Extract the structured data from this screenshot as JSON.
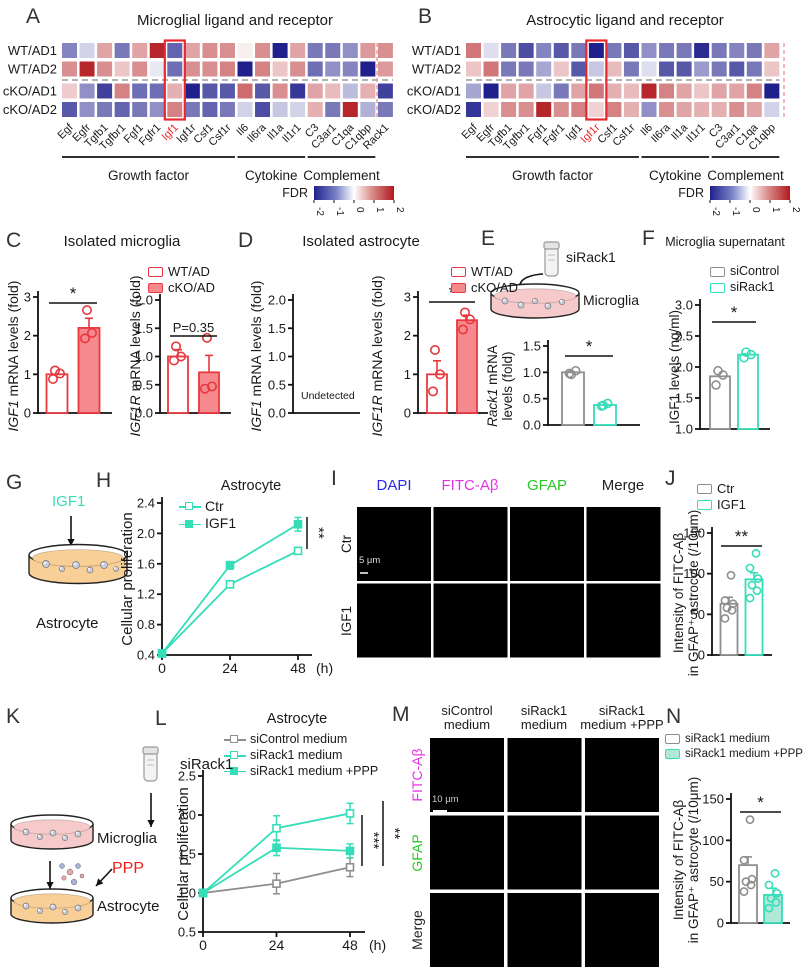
{
  "panels": {
    "a": "A",
    "b": "B",
    "c": "C",
    "d": "D",
    "e": "E",
    "f": "F",
    "g": "G",
    "h": "H",
    "i": "I",
    "j": "J",
    "k": "K",
    "l": "L",
    "m": "M",
    "n": "N"
  },
  "colors": {
    "red": "#e7383e",
    "pink": "#f5898d",
    "teal": "#35ddb8",
    "gray": "#8e8e8e",
    "teal_light": "#b2e8d8",
    "magenta": "#e832e8",
    "green": "#28c828",
    "blue": "#2a2ae8"
  },
  "heatmap_a": {
    "title": "Microglial ligand and receptor",
    "rows": [
      "WT/AD1",
      "WT/AD2",
      "cKO/AD1",
      "cKO/AD2"
    ],
    "genes": [
      "Egf",
      "Egfr",
      "Tgfb1",
      "Tgfbr1",
      "Fgf1",
      "Fgfr1",
      "Igf1",
      "Igf1r",
      "Csf1",
      "Csf1r",
      "Il6",
      "Il6ra",
      "Il1a",
      "Il1r1",
      "C3",
      "C3ar1",
      "C1qa",
      "C1qbp",
      "Rack1"
    ],
    "highlight_gene": "Igf1",
    "values": [
      [
        -1.1,
        -0.4,
        0.8,
        -1.2,
        0.8,
        1.9,
        -1.4,
        0.8,
        1.0,
        1.0,
        0.15,
        1.0,
        -2,
        0.8,
        -1.2,
        -1.2,
        -1.0,
        0.9,
        1.0
      ],
      [
        1.0,
        1.9,
        1.0,
        0.5,
        1.0,
        -0.2,
        -1.3,
        1.0,
        1.0,
        1.1,
        -2,
        1.1,
        0.5,
        1.0,
        -1.3,
        -1.0,
        -1.1,
        -2,
        0.9
      ],
      [
        0.45,
        -1.0,
        -1.7,
        1.1,
        -1.3,
        -1.3,
        0.7,
        -2,
        -1.5,
        -1.5,
        1.3,
        -1.5,
        1.0,
        -1.8,
        0.8,
        0.6,
        -0.6,
        0.7,
        -1.7
      ],
      [
        -1.5,
        -1.0,
        -1.2,
        -1.4,
        -1.2,
        -1.0,
        1.1,
        -1.2,
        -1.4,
        -1.2,
        -0.4,
        -1.6,
        -0.5,
        -0.4,
        0.7,
        -1.2,
        1.9,
        -0.7,
        -1.2
      ]
    ],
    "groups": [
      {
        "label": "Growth factor",
        "from": 0,
        "to": 9
      },
      {
        "label": "Cytokine",
        "from": 10,
        "to": 13
      },
      {
        "label": "Complement",
        "from": 14,
        "to": 17
      }
    ],
    "legend_label": "FDR",
    "legend_ticks": [
      "-2",
      "-1",
      "0",
      "1",
      "2"
    ]
  },
  "heatmap_b": {
    "title": "Astrocytic ligand and receptor",
    "rows": [
      "WT/AD1",
      "WT/AD2",
      "cKO/AD1",
      "cKO/AD2"
    ],
    "genes": [
      "Egf",
      "Egfr",
      "Tgfb1",
      "Tgfbr1",
      "Fgf1",
      "Fgfr1",
      "Igf1",
      "Igf1r",
      "Csf1",
      "Csf1r",
      "Il6",
      "Il6ra",
      "Il1a",
      "Il1r1",
      "C3",
      "C3ar1",
      "C1qa",
      "C1qbp"
    ],
    "highlight_gene": "Igf1r",
    "values": [
      [
        1.2,
        -0.3,
        -1.2,
        -1.6,
        -1.1,
        -1.5,
        -1.2,
        -2,
        -1.2,
        -1.5,
        -1.0,
        -1.2,
        -1.2,
        -1.9,
        -1.2,
        -1.1,
        -1.2,
        0.8
      ],
      [
        0.5,
        1.2,
        -1.2,
        -1.2,
        -0.8,
        0.5,
        -1.5,
        -0.5,
        0.6,
        -1.2,
        -0.3,
        -1.5,
        -1.5,
        -0.9,
        -1.2,
        -1.5,
        -1.2,
        0.5
      ],
      [
        -0.8,
        -2,
        0.8,
        0.8,
        -0.5,
        -1.2,
        0.8,
        1.2,
        0.7,
        0.6,
        1.9,
        1.1,
        0.8,
        0.5,
        0.8,
        0.8,
        1.1,
        -2
      ],
      [
        -1.8,
        0.4,
        1.0,
        1.0,
        1.9,
        1.0,
        1.1,
        0.4,
        1.1,
        0.7,
        -1.0,
        1.0,
        0.8,
        0.7,
        0.7,
        1.0,
        0.8,
        -0.4
      ]
    ],
    "groups": [
      {
        "label": "Growth factor",
        "from": 0,
        "to": 9
      },
      {
        "label": "Cytokine",
        "from": 10,
        "to": 13
      },
      {
        "label": "Complement",
        "from": 14,
        "to": 17
      }
    ],
    "legend_label": "FDR",
    "legend_ticks": [
      "-2",
      "-1",
      "0",
      "1",
      "2"
    ]
  },
  "panel_c": {
    "title": "Isolated microglia",
    "legend": [
      {
        "label": "WT/AD",
        "fill": "#ffffff",
        "stroke": "#e7383e"
      },
      {
        "label": "cKO/AD",
        "fill": "#f5898d",
        "stroke": "#e7383e"
      }
    ]
  },
  "panel_d": {
    "title": "Isolated astrocyte",
    "legend": [
      {
        "label": "WT/AD",
        "fill": "#ffffff",
        "stroke": "#e7383e"
      },
      {
        "label": "cKO/AD",
        "fill": "#f5898d",
        "stroke": "#e7383e"
      }
    ]
  },
  "panel_f": {
    "title": "Microglia supernatant",
    "legend": [
      {
        "label": "siControl",
        "fill": "#ffffff",
        "stroke": "#8e8e8e"
      },
      {
        "label": "siRack1",
        "fill": "#ffffff",
        "stroke": "#35ddb8"
      }
    ]
  },
  "panel_h": {
    "title": "Astrocyte",
    "legend": [
      {
        "label": "Ctr",
        "type": "line",
        "color": "#35ddb8",
        "filled": false
      },
      {
        "label": "IGF1",
        "type": "line",
        "color": "#35ddb8",
        "filled": true
      }
    ]
  },
  "panel_j": {
    "legend": [
      {
        "label": "Ctr",
        "fill": "#ffffff",
        "stroke": "#8e8e8e"
      },
      {
        "label": "IGF1",
        "fill": "#ffffff",
        "stroke": "#35ddb8"
      }
    ]
  },
  "panel_l": {
    "title": "Astrocyte",
    "legend": [
      {
        "label": "siControl medium",
        "type": "line",
        "color": "#8e8e8e",
        "filled": false
      },
      {
        "label": "siRack1 medium",
        "type": "line",
        "color": "#35ddb8",
        "filled": false
      },
      {
        "label": "siRack1 medium +PPP",
        "type": "line",
        "color": "#35ddb8",
        "filled": true
      }
    ]
  },
  "panel_n": {
    "legend": [
      {
        "label": "siRack1 medium",
        "fill": "#ffffff",
        "stroke": "#8e8e8e"
      },
      {
        "label": "siRack1 medium +PPP",
        "fill": "#b2e8d8",
        "stroke": "#35ddb8"
      }
    ]
  },
  "diagram_e": {
    "tube": "siRack1",
    "dish": "Microglia"
  },
  "diagram_g": {
    "factor": "IGF1",
    "dish": "Astrocyte"
  },
  "diagram_k": {
    "tube": "siRack1",
    "dish1": "Microglia",
    "ppp": "PPP",
    "dish2": "Astrocyte"
  },
  "microscopy_i": {
    "col_headers": [
      {
        "label": "DAPI",
        "color": "#2a2ae8"
      },
      {
        "label": "FITC-Aβ",
        "color": "#e832e8"
      },
      {
        "label": "GFAP",
        "color": "#28c828"
      },
      {
        "label": "Merge",
        "color": "#222222"
      }
    ],
    "row_labels": [
      "Ctr",
      "IGF1"
    ],
    "scale_label": "5 μm"
  },
  "microscopy_m": {
    "col_headers": [
      [
        "siControl",
        "medium"
      ],
      [
        "siRack1",
        "medium"
      ],
      [
        "siRack1",
        "medium +PPP"
      ]
    ],
    "row_labels": [
      {
        "label": "FITC-Aβ",
        "color": "#e832e8"
      },
      {
        "label": "GFAP",
        "color": "#28c828"
      },
      {
        "label": "Merge",
        "color": "#222222"
      }
    ],
    "scale_label": "10 μm"
  },
  "chart_data": {
    "c1": {
      "type": "bar",
      "ylim": [
        0,
        3
      ],
      "yticks": [
        {
          "v": 0,
          "t": "0"
        },
        {
          "v": 1,
          "t": "1"
        },
        {
          "v": 2,
          "t": "2"
        },
        {
          "v": 3,
          "t": "3"
        }
      ],
      "ylabel": [
        {
          "t": "IGF1",
          "i": 1
        },
        {
          "t": " mRNA levels (fold)"
        }
      ],
      "bars": [
        {
          "label": "WT/AD",
          "value": 1.0,
          "points": [
            0.88,
            1.02,
            1.1
          ],
          "fill": "#ffffff",
          "stroke": "#e7383e"
        },
        {
          "label": "cKO/AD",
          "value": 2.2,
          "err": 0.25,
          "points": [
            1.93,
            2.07,
            2.66
          ],
          "fill": "#f5898d",
          "stroke": "#e7383e"
        }
      ],
      "sig": {
        "label": "*"
      }
    },
    "c2": {
      "type": "bar",
      "ylim": [
        0,
        2
      ],
      "yticks": [
        {
          "v": 0,
          "t": "0.0"
        },
        {
          "v": 0.5,
          "t": "0.5"
        },
        {
          "v": 1,
          "t": "1.0"
        },
        {
          "v": 1.5,
          "t": "1.5"
        },
        {
          "v": 2,
          "t": "2.0"
        }
      ],
      "ylabel": [
        {
          "t": "IGF1R",
          "i": 1
        },
        {
          "t": " mRNA levels (fold)"
        }
      ],
      "bars": [
        {
          "label": "WT/AD",
          "value": 1.0,
          "err": 0.12,
          "points": [
            0.93,
            1.0,
            1.18
          ],
          "fill": "#ffffff",
          "stroke": "#e7383e"
        },
        {
          "label": "cKO/AD",
          "value": 0.72,
          "err": 0.3,
          "points": [
            0.43,
            0.47,
            1.33
          ],
          "fill": "#f5898d",
          "stroke": "#e7383e"
        }
      ],
      "sig": {
        "label": "P=0.35",
        "fs": 13
      }
    },
    "d1": {
      "type": "bar",
      "ylim": [
        0,
        2
      ],
      "yticks": [
        {
          "v": 0,
          "t": "0.0"
        },
        {
          "v": 0.5,
          "t": "0.5"
        },
        {
          "v": 1,
          "t": "1.0"
        },
        {
          "v": 1.5,
          "t": "1.5"
        },
        {
          "v": 2,
          "t": "2.0"
        }
      ],
      "ylabel": [
        {
          "t": "IGF1",
          "i": 1
        },
        {
          "t": " mRNA levels (fold)"
        }
      ],
      "bars": [],
      "note": "Undetected"
    },
    "d2": {
      "type": "bar",
      "ylim": [
        0,
        3
      ],
      "yticks": [
        {
          "v": 0,
          "t": "0"
        },
        {
          "v": 1,
          "t": "1"
        },
        {
          "v": 2,
          "t": "2"
        },
        {
          "v": 3,
          "t": "3"
        }
      ],
      "ylabel": [
        {
          "t": "IGF1R",
          "i": 1
        },
        {
          "t": " mRNA levels (fold)"
        }
      ],
      "bars": [
        {
          "label": "WT/AD",
          "value": 1.0,
          "err": 0.35,
          "points": [
            0.56,
            1.0,
            1.63
          ],
          "fill": "#ffffff",
          "stroke": "#e7383e"
        },
        {
          "label": "cKO/AD",
          "value": 2.4,
          "err": 0.13,
          "points": [
            2.16,
            2.42,
            2.6
          ],
          "fill": "#f5898d",
          "stroke": "#e7383e"
        }
      ],
      "sig": {
        "label": "*"
      }
    },
    "e": {
      "type": "bar",
      "ylim": [
        0,
        1.5
      ],
      "yticks": [
        {
          "v": 0,
          "t": "0.0"
        },
        {
          "v": 0.5,
          "t": "0.5"
        },
        {
          "v": 1,
          "t": "1.0"
        },
        {
          "v": 1.5,
          "t": "1.5"
        }
      ],
      "ylabel": [
        [
          {
            "t": "Rack1",
            "i": 1
          },
          {
            "t": " mRNA"
          }
        ],
        [
          {
            "t": "levels (fold)"
          }
        ]
      ],
      "bars": [
        {
          "label": "siControl",
          "value": 1.0,
          "points": [
            0.98,
            1.03,
            0.96
          ],
          "fill": "#ffffff",
          "stroke": "#8e8e8e"
        },
        {
          "label": "siRack1",
          "value": 0.38,
          "points": [
            0.36,
            0.41,
            0.37
          ],
          "fill": "#ffffff",
          "stroke": "#35ddb8"
        }
      ],
      "sig": {
        "label": "*"
      }
    },
    "f": {
      "type": "bar",
      "ylim": [
        1,
        3
      ],
      "yticks": [
        {
          "v": 1,
          "t": "1.0"
        },
        {
          "v": 1.5,
          "t": "1.5"
        },
        {
          "v": 2,
          "t": "2.0"
        },
        {
          "v": 2.5,
          "t": "2.5"
        },
        {
          "v": 3,
          "t": "3.0"
        }
      ],
      "ylabel": [
        {
          "t": "IGF1 levels  (ng/ml)"
        }
      ],
      "bars": [
        {
          "label": "siControl",
          "value": 1.85,
          "points": [
            1.71,
            1.87,
            1.94
          ],
          "fill": "#ffffff",
          "stroke": "#8e8e8e"
        },
        {
          "label": "siRack1",
          "value": 2.2,
          "points": [
            2.15,
            2.2,
            2.24
          ],
          "fill": "#ffffff",
          "stroke": "#35ddb8"
        }
      ],
      "sig": {
        "label": "*"
      }
    },
    "h": {
      "type": "line",
      "title": "Astrocyte",
      "ylim": [
        0.4,
        2.4
      ],
      "yticks": [
        {
          "v": 0.4,
          "t": "0.4"
        },
        {
          "v": 0.8,
          "t": "0.8"
        },
        {
          "v": 1.2,
          "t": "1.2"
        },
        {
          "v": 1.6,
          "t": "1.6"
        },
        {
          "v": 2,
          "t": "2.0"
        },
        {
          "v": 2.4,
          "t": "2.4"
        }
      ],
      "ylabel": [
        {
          "t": "Cellular proliferation"
        }
      ],
      "x": [
        0,
        24,
        48
      ],
      "xticks": [
        "0",
        "24",
        "48"
      ],
      "xunit": "(h)",
      "series": [
        {
          "name": "Ctr",
          "color": "#35ddb8",
          "filled": false,
          "values": [
            0.42,
            1.33,
            1.77
          ],
          "err": [
            0,
            0,
            0
          ]
        },
        {
          "name": "IGF1",
          "color": "#35ddb8",
          "filled": true,
          "values": [
            0.42,
            1.58,
            2.12
          ],
          "err": [
            0,
            0.05,
            0.09
          ]
        }
      ],
      "sigs": [
        {
          "label": "**"
        }
      ]
    },
    "j": {
      "type": "bar",
      "ylim": [
        0,
        150
      ],
      "yticks": [
        {
          "v": 0,
          "t": "0"
        },
        {
          "v": 50,
          "t": "50"
        },
        {
          "v": 100,
          "t": "100"
        },
        {
          "v": 150,
          "t": "150"
        }
      ],
      "ylabel": [
        [
          {
            "t": "Intensity of FITC-Aβ"
          }
        ],
        [
          {
            "t": "in GFAP⁺ astrocyte (/10μm)"
          }
        ]
      ],
      "bars": [
        {
          "label": "Ctr",
          "value": 63,
          "err": 8,
          "points": [
            45,
            55,
            58,
            63,
            67,
            98
          ],
          "fill": "#ffffff",
          "stroke": "#8e8e8e"
        },
        {
          "label": "IGF1",
          "value": 93,
          "err": 8,
          "points": [
            70,
            79,
            86,
            94,
            107,
            125
          ],
          "fill": "#ffffff",
          "stroke": "#35ddb8"
        }
      ],
      "sig": {
        "label": "**"
      }
    },
    "l": {
      "type": "line",
      "title": "Astrocyte",
      "ylim": [
        0.5,
        2.5
      ],
      "yticks": [
        {
          "v": 0.5,
          "t": "0.5"
        },
        {
          "v": 1,
          "t": "1.0"
        },
        {
          "v": 1.5,
          "t": "1.5"
        },
        {
          "v": 2,
          "t": "2.0"
        },
        {
          "v": 2.5,
          "t": "2.5"
        }
      ],
      "ylabel": [
        {
          "t": "Cellular proliferation"
        }
      ],
      "x": [
        0,
        24,
        48
      ],
      "xticks": [
        "0",
        "24",
        "48"
      ],
      "xunit": "(h)",
      "series": [
        {
          "name": "siControl medium",
          "color": "#8e8e8e",
          "filled": false,
          "values": [
            1.0,
            1.12,
            1.33
          ],
          "err": [
            0,
            0.13,
            0.12
          ]
        },
        {
          "name": "siRack1 medium",
          "color": "#35ddb8",
          "filled": false,
          "values": [
            1.0,
            1.83,
            2.02
          ],
          "err": [
            0,
            0.16,
            0.13
          ]
        },
        {
          "name": "siRack1 medium +PPP",
          "color": "#35ddb8",
          "filled": true,
          "values": [
            1.0,
            1.58,
            1.54
          ],
          "err": [
            0,
            0.1,
            0.09
          ]
        }
      ],
      "sigs": [
        {
          "label": "***"
        },
        {
          "label": "**"
        }
      ]
    },
    "n": {
      "type": "bar",
      "ylim": [
        0,
        150
      ],
      "yticks": [
        {
          "v": 0,
          "t": "0"
        },
        {
          "v": 50,
          "t": "50"
        },
        {
          "v": 100,
          "t": "100"
        },
        {
          "v": 150,
          "t": "150"
        }
      ],
      "ylabel": [
        [
          {
            "t": "Intensity of FITC-Aβ"
          }
        ],
        [
          {
            "t": "in GFAP⁺ astrocyte (/10μm)"
          }
        ]
      ],
      "bars": [
        {
          "label": "siRack1 medium",
          "value": 70,
          "err": 10,
          "points": [
            38,
            46,
            50,
            53,
            76,
            125
          ],
          "fill": "#ffffff",
          "stroke": "#8e8e8e"
        },
        {
          "label": "siRack1 medium +PPP",
          "value": 34,
          "err": 8,
          "points": [
            18,
            25,
            30,
            36,
            46,
            60
          ],
          "fill": "#b2e8d8",
          "stroke": "#35ddb8"
        }
      ],
      "sig": {
        "label": "*"
      }
    }
  }
}
